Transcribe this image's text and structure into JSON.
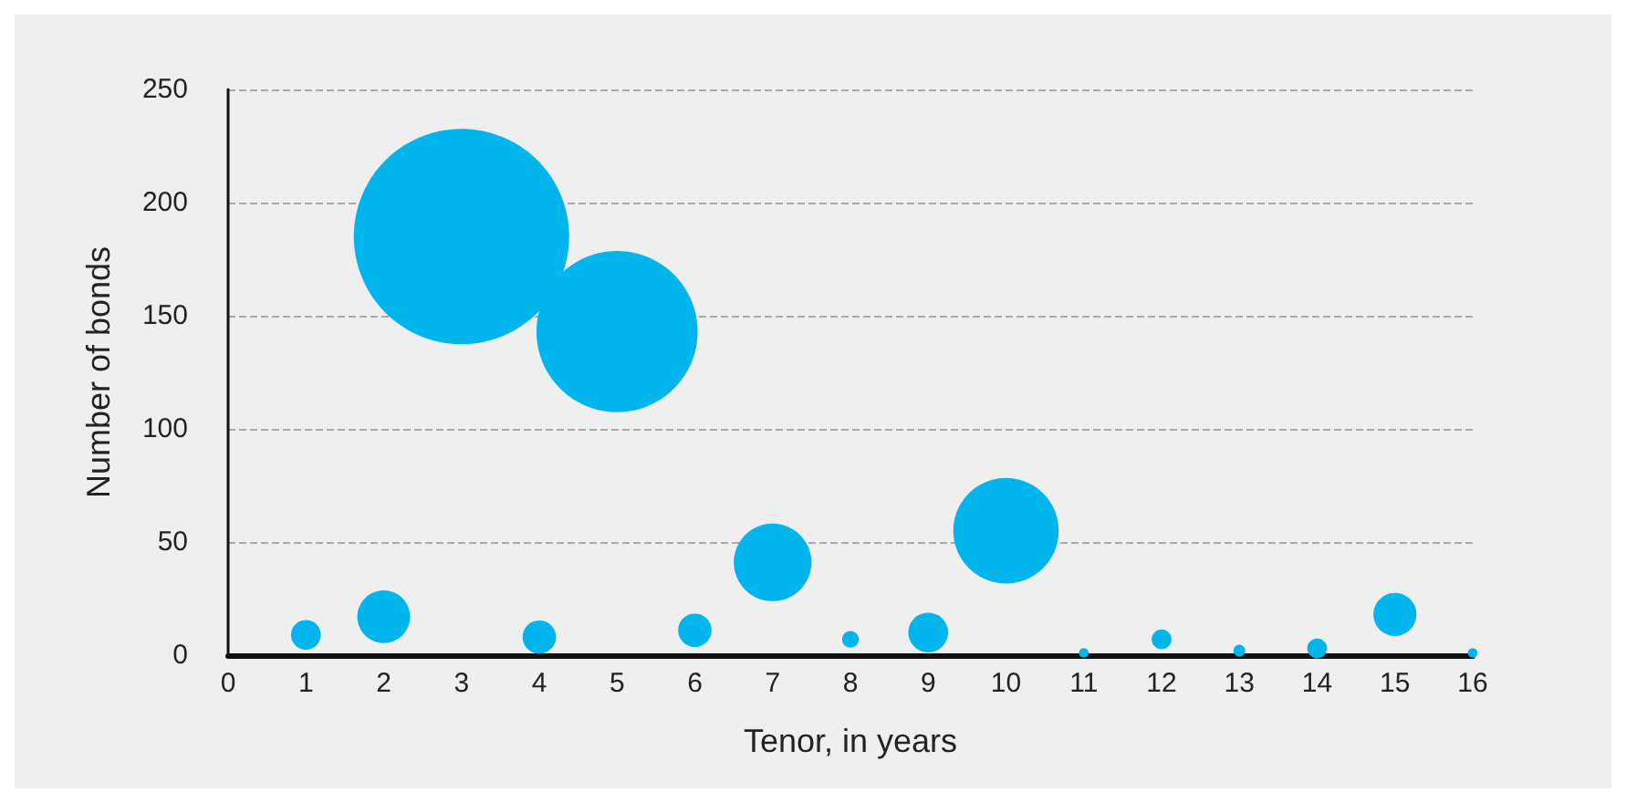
{
  "chart_data": {
    "type": "bubble",
    "xlabel": "Tenor, in years",
    "ylabel": "Number of bonds",
    "x": [
      1,
      2,
      3,
      4,
      5,
      6,
      7,
      8,
      9,
      10,
      11,
      12,
      13,
      14,
      15,
      16
    ],
    "values": [
      9,
      17,
      185,
      8,
      143,
      11,
      41,
      7,
      10,
      55,
      1,
      7,
      2,
      3,
      18,
      1
    ],
    "sizes": [
      0.019,
      0.06,
      1,
      0.024,
      0.56,
      0.024,
      0.13,
      0.006,
      0.034,
      0.24,
      0.002,
      0.0085,
      0.003,
      0.0085,
      0.04,
      0.002
    ],
    "color": "#00b5ec",
    "xlim": [
      0,
      16
    ],
    "xticks": [
      0,
      1,
      2,
      3,
      4,
      5,
      6,
      7,
      8,
      9,
      10,
      11,
      12,
      13,
      14,
      15,
      16
    ],
    "ylim": [
      0,
      250
    ],
    "yticks": [
      0,
      50,
      100,
      150,
      200,
      250
    ],
    "grid": "y"
  }
}
